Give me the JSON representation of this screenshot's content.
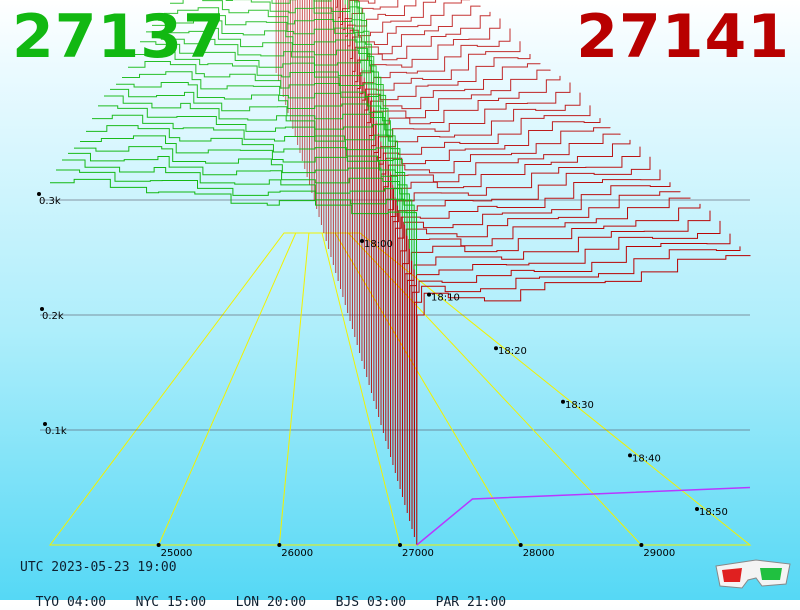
{
  "header": {
    "bid_price": "27137",
    "ask_price": "27141"
  },
  "footer": {
    "utc_label": "UTC 2023-05-23 19:00",
    "zones": [
      "TYO 04:00",
      "NYC 15:00",
      "LON 20:00",
      "BJS 03:00",
      "PAR 21:00"
    ]
  },
  "colors": {
    "bid": "#12b812",
    "ask": "#b80000",
    "grid": "#f2f200",
    "mid": "#b838ff"
  },
  "icons": {
    "anaglyph": "3d-glasses-icon"
  },
  "chart_data": {
    "type": "line",
    "subtype": "3d-order-book-depth",
    "x_ticks": [
      25000,
      26000,
      27000,
      28000,
      29000
    ],
    "z_ticks": [
      "0.1k",
      "0.2k",
      "0.3k"
    ],
    "time_ticks": [
      "18:00",
      "18:10",
      "18:20",
      "18:30",
      "18:40",
      "18:50"
    ],
    "xlim": [
      24100,
      29900
    ],
    "zlim": [
      0,
      0.5
    ],
    "snapshot_count": 60,
    "series": [
      {
        "side": "bid",
        "x": [
          24100,
          24300,
          24600,
          24900,
          25000,
          25300,
          25600,
          25900,
          26000,
          26300,
          26600,
          26900,
          27050,
          27137
        ],
        "depth_k": [
          0.315,
          0.314,
          0.312,
          0.31,
          0.305,
          0.302,
          0.3,
          0.298,
          0.296,
          0.294,
          0.292,
          0.29,
          0.285,
          0.235
        ]
      },
      {
        "side": "ask",
        "x": [
          27141,
          27200,
          27400,
          27700,
          28000,
          28200,
          28700,
          29000,
          29300,
          29700,
          29900
        ],
        "depth_k": [
          0.2,
          0.215,
          0.216,
          0.216,
          0.22,
          0.225,
          0.232,
          0.24,
          0.245,
          0.25,
          0.255
        ]
      }
    ],
    "depth_drift_per_snapshot_k": 0.001
  }
}
